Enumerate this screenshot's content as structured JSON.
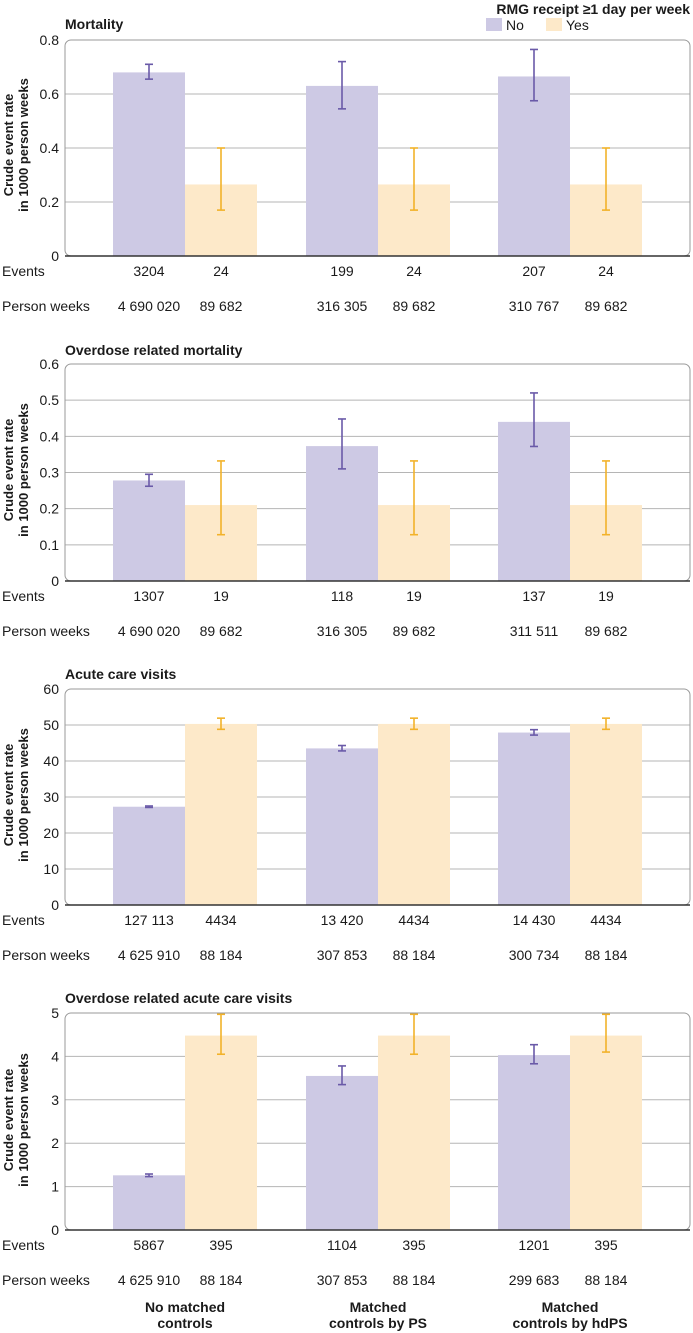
{
  "legend": {
    "title": "RMG receipt ≥1 day per week",
    "items": [
      {
        "label": "No",
        "color": "#cdc9e4"
      },
      {
        "label": "Yes",
        "color": "#fde9c9"
      }
    ]
  },
  "colors": {
    "no_bar": "#cdc9e4",
    "yes_bar": "#fde9c9",
    "no_err": "#6a5aa8",
    "yes_err": "#f2b22a",
    "grid": "#b5b5b5",
    "frame": "#9a9a9a"
  },
  "row_labels": {
    "events": "Events",
    "person_weeks": "Person weeks"
  },
  "groups": [
    {
      "line1": "No matched",
      "line2": "controls"
    },
    {
      "line1": "Matched",
      "line2": "controls by PS"
    },
    {
      "line1": "Matched",
      "line2": "controls by hdPS"
    }
  ],
  "chart_data": [
    {
      "type": "bar",
      "title": "Mortality",
      "ylabel": "Crude event rate in 1000 person weeks",
      "ylim": [
        0,
        0.8
      ],
      "yticks": [
        "0",
        "0.2",
        "0.4",
        "0.6",
        "0.8"
      ],
      "series": [
        {
          "name": "No",
          "values": [
            0.68,
            0.63,
            0.665
          ],
          "err_low": [
            0.655,
            0.545,
            0.575
          ],
          "err_high": [
            0.71,
            0.72,
            0.765
          ]
        },
        {
          "name": "Yes",
          "values": [
            0.265,
            0.265,
            0.265
          ],
          "err_low": [
            0.17,
            0.17,
            0.17
          ],
          "err_high": [
            0.4,
            0.4,
            0.4
          ]
        }
      ],
      "events": [
        [
          "3204",
          "24"
        ],
        [
          "199",
          "24"
        ],
        [
          "207",
          "24"
        ]
      ],
      "person_weeks": [
        [
          "4 690 020",
          "89 682"
        ],
        [
          "316 305",
          "89 682"
        ],
        [
          "310 767",
          "89 682"
        ]
      ]
    },
    {
      "type": "bar",
      "title": "Overdose related mortality",
      "ylabel": "Crude event rate in 1000 person weeks",
      "ylim": [
        0,
        0.6
      ],
      "yticks": [
        "0",
        "0.1",
        "0.2",
        "0.3",
        "0.4",
        "0.5",
        "0.6"
      ],
      "series": [
        {
          "name": "No",
          "values": [
            0.278,
            0.373,
            0.44
          ],
          "err_low": [
            0.262,
            0.31,
            0.372
          ],
          "err_high": [
            0.295,
            0.448,
            0.52
          ]
        },
        {
          "name": "Yes",
          "values": [
            0.21,
            0.21,
            0.21
          ],
          "err_low": [
            0.128,
            0.128,
            0.128
          ],
          "err_high": [
            0.332,
            0.332,
            0.332
          ]
        }
      ],
      "events": [
        [
          "1307",
          "19"
        ],
        [
          "118",
          "19"
        ],
        [
          "137",
          "19"
        ]
      ],
      "person_weeks": [
        [
          "4 690 020",
          "89 682"
        ],
        [
          "316 305",
          "89 682"
        ],
        [
          "311 511",
          "89 682"
        ]
      ]
    },
    {
      "type": "bar",
      "title": "Acute care visits",
      "ylabel": "Crude event rate in 1000 person weeks",
      "ylim": [
        0,
        60
      ],
      "yticks": [
        "0",
        "10",
        "20",
        "30",
        "40",
        "50",
        "60"
      ],
      "series": [
        {
          "name": "No",
          "values": [
            27.3,
            43.5,
            47.9
          ],
          "err_low": [
            27.1,
            42.8,
            47.2
          ],
          "err_high": [
            27.5,
            44.3,
            48.7
          ]
        },
        {
          "name": "Yes",
          "values": [
            50.3,
            50.3,
            50.3
          ],
          "err_low": [
            48.8,
            48.8,
            48.8
          ],
          "err_high": [
            51.9,
            51.9,
            51.9
          ]
        }
      ],
      "events": [
        [
          "127 113",
          "4434"
        ],
        [
          "13 420",
          "4434"
        ],
        [
          "14 430",
          "4434"
        ]
      ],
      "person_weeks": [
        [
          "4 625 910",
          "88 184"
        ],
        [
          "307 853",
          "88 184"
        ],
        [
          "300 734",
          "88 184"
        ]
      ]
    },
    {
      "type": "bar",
      "title": "Overdose related acute care visits",
      "ylabel": "Crude event rate in 1000 person weeks",
      "ylim": [
        0,
        5
      ],
      "yticks": [
        "0",
        "1",
        "2",
        "3",
        "4",
        "5"
      ],
      "series": [
        {
          "name": "No",
          "values": [
            1.26,
            3.55,
            4.03
          ],
          "err_low": [
            1.23,
            3.35,
            3.83
          ],
          "err_high": [
            1.29,
            3.78,
            4.27
          ]
        },
        {
          "name": "Yes",
          "values": [
            4.48,
            4.48,
            4.48
          ],
          "err_low": [
            4.05,
            4.05,
            4.1
          ],
          "err_high": [
            4.97,
            4.97,
            4.97
          ]
        }
      ],
      "events": [
        [
          "5867",
          "395"
        ],
        [
          "1104",
          "395"
        ],
        [
          "1201",
          "395"
        ]
      ],
      "person_weeks": [
        [
          "4 625 910",
          "88 184"
        ],
        [
          "307 853",
          "88 184"
        ],
        [
          "299 683",
          "88 184"
        ]
      ]
    }
  ]
}
